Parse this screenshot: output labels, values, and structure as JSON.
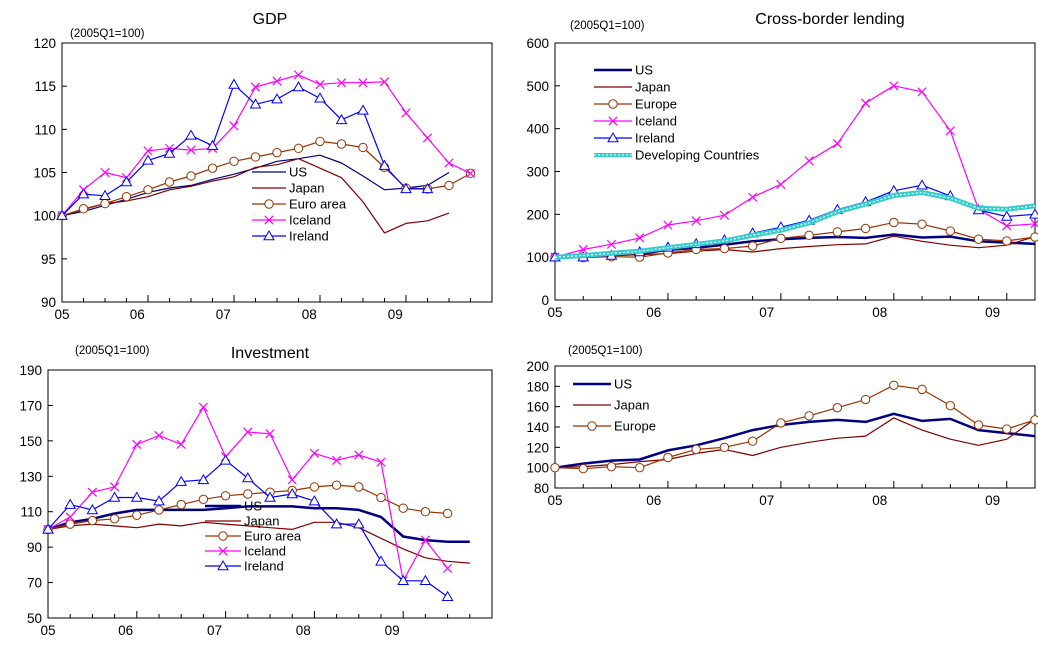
{
  "chart_data": [
    {
      "type": "line",
      "title": "GDP",
      "note": "(2005Q1=100)",
      "xlabel": "",
      "ylabel": "",
      "x_ticks": [
        "05",
        "06",
        "07",
        "08",
        "09"
      ],
      "xlim": [
        0,
        20
      ],
      "ylim": [
        90,
        120
      ],
      "yticks": [
        90,
        95,
        100,
        105,
        110,
        115,
        120
      ],
      "grid": false,
      "legend_position": "center",
      "series": [
        {
          "name": "US",
          "color": "#000080",
          "marker": "none",
          "values": [
            100,
            100.5,
            101.2,
            101.9,
            102.7,
            103.2,
            103.5,
            104.2,
            104.8,
            105.5,
            106.3,
            106.6,
            107.0,
            106.1,
            104.6,
            103.0,
            103.2,
            103.5,
            105.0
          ]
        },
        {
          "name": "Japan",
          "color": "#800000",
          "marker": "none",
          "values": [
            100,
            100.7,
            101.4,
            101.7,
            102.2,
            103.0,
            103.4,
            104.0,
            104.5,
            105.6,
            105.9,
            106.6,
            105.5,
            104.4,
            101.6,
            98.0,
            99.1,
            99.4,
            100.3
          ]
        },
        {
          "name": "Euro area",
          "color": "#993300",
          "marker": "circle",
          "values": [
            100,
            100.8,
            101.4,
            102.2,
            103.0,
            103.9,
            104.6,
            105.5,
            106.3,
            106.8,
            107.3,
            107.8,
            108.6,
            108.3,
            107.9,
            105.6,
            103.2,
            103.1,
            103.5,
            104.9
          ]
        },
        {
          "name": "Iceland",
          "color": "#ff00ff",
          "marker": "x",
          "values": [
            100,
            103.0,
            105.0,
            104.4,
            107.5,
            107.8,
            107.6,
            107.8,
            110.4,
            114.9,
            115.6,
            116.3,
            115.2,
            115.4,
            115.4,
            115.5,
            111.9,
            109.0,
            106.1,
            104.9
          ]
        },
        {
          "name": "Ireland",
          "color": "#0000ff",
          "marker": "triangle",
          "values": [
            100,
            102.5,
            102.3,
            103.9,
            106.4,
            107.2,
            109.3,
            108.1,
            115.2,
            112.9,
            113.5,
            114.9,
            113.6,
            111.1,
            112.2,
            105.8,
            103.1,
            103.1
          ]
        }
      ]
    },
    {
      "type": "line",
      "title": "Cross-border lending",
      "note": "(2005Q1=100)",
      "xlabel": "",
      "ylabel": "",
      "x_ticks": [
        "05",
        "06",
        "07",
        "08",
        "09"
      ],
      "xlim": [
        0,
        17
      ],
      "ylim": [
        0,
        600
      ],
      "yticks": [
        0,
        100,
        200,
        300,
        400,
        500,
        600
      ],
      "grid": false,
      "legend_position": "top-left",
      "series": [
        {
          "name": "US",
          "color": "#000080",
          "marker": "none",
          "width": 2.5,
          "values": [
            100,
            104,
            107,
            108,
            117,
            122,
            129,
            137,
            142,
            145,
            147,
            145,
            153,
            146,
            148,
            137,
            134,
            131
          ]
        },
        {
          "name": "Japan",
          "color": "#800000",
          "marker": "none",
          "values": [
            100,
            101,
            103,
            106,
            108,
            114,
            118,
            112,
            120,
            125,
            129,
            131,
            149,
            137,
            128,
            122,
            128,
            148
          ]
        },
        {
          "name": "Europe",
          "color": "#993300",
          "marker": "circle",
          "values": [
            100,
            99,
            101,
            100,
            110,
            118,
            120,
            126,
            144,
            151,
            159,
            167,
            181,
            177,
            161,
            142,
            138,
            147
          ]
        },
        {
          "name": "Iceland",
          "color": "#ff00ff",
          "marker": "x",
          "values": [
            100,
            118,
            130,
            145,
            175,
            185,
            198,
            240,
            270,
            325,
            365,
            460,
            500,
            486,
            395,
            212,
            173,
            178
          ]
        },
        {
          "name": "Ireland",
          "color": "#0000ff",
          "marker": "triangle",
          "values": [
            100,
            100,
            104,
            112,
            123,
            131,
            140,
            156,
            170,
            186,
            211,
            229,
            255,
            268,
            243,
            210,
            195,
            200
          ]
        },
        {
          "name": "Developing Countries",
          "color": "#33cccc",
          "marker": "none",
          "width": 5,
          "dashed": true,
          "values": [
            100,
            104,
            109,
            114,
            122,
            130,
            138,
            151,
            163,
            180,
            206,
            224,
            244,
            251,
            238,
            214,
            212,
            220
          ]
        }
      ]
    },
    {
      "type": "line",
      "title": "Investment",
      "note": "(2005Q1=100)",
      "xlabel": "",
      "ylabel": "",
      "x_ticks": [
        "05",
        "06",
        "07",
        "08",
        "09"
      ],
      "xlim": [
        0,
        20
      ],
      "ylim": [
        50,
        190
      ],
      "yticks": [
        50,
        70,
        90,
        110,
        130,
        150,
        170,
        190
      ],
      "grid": false,
      "legend_position": "bottom-center",
      "series": [
        {
          "name": "US",
          "color": "#000080",
          "marker": "none",
          "width": 2.5,
          "values": [
            100,
            104,
            106,
            109,
            111,
            111,
            111,
            111,
            112,
            113,
            113,
            113,
            112,
            112,
            111,
            107,
            96,
            94,
            93,
            93
          ]
        },
        {
          "name": "Japan",
          "color": "#800000",
          "marker": "none",
          "values": [
            100,
            102,
            103,
            102,
            101,
            103,
            102,
            104,
            103,
            102,
            101,
            100,
            104,
            104,
            101,
            95,
            89,
            84,
            82,
            81
          ]
        },
        {
          "name": "Euro area",
          "color": "#993300",
          "marker": "circle",
          "values": [
            100,
            103,
            105,
            106,
            108,
            111,
            114,
            117,
            119,
            120,
            121,
            122,
            124,
            125,
            124,
            118,
            112,
            110,
            109
          ]
        },
        {
          "name": "Iceland",
          "color": "#ff00ff",
          "marker": "x",
          "values": [
            100,
            107,
            121,
            124,
            148,
            153,
            148,
            169,
            141,
            155,
            154,
            128,
            143,
            139,
            142,
            138,
            71,
            94,
            78
          ]
        },
        {
          "name": "Ireland",
          "color": "#0000ff",
          "marker": "triangle",
          "values": [
            100,
            114,
            111,
            118,
            118,
            116,
            127,
            128,
            139,
            129,
            118,
            120,
            116,
            103,
            103,
            82,
            71,
            71,
            62
          ]
        }
      ]
    },
    {
      "type": "line",
      "title": "",
      "note": "(2005Q1=100)",
      "xlabel": "",
      "ylabel": "",
      "x_ticks": [
        "05",
        "06",
        "07",
        "08",
        "09"
      ],
      "xlim": [
        0,
        17
      ],
      "ylim": [
        80,
        200
      ],
      "yticks": [
        80,
        100,
        120,
        140,
        160,
        180,
        200
      ],
      "grid": false,
      "legend_position": "top-left",
      "series": [
        {
          "name": "US",
          "color": "#000080",
          "marker": "none",
          "width": 2.5,
          "values": [
            100,
            104,
            107,
            108,
            117,
            122,
            129,
            137,
            142,
            145,
            147,
            145,
            153,
            146,
            148,
            137,
            134,
            131
          ]
        },
        {
          "name": "Japan",
          "color": "#800000",
          "marker": "none",
          "values": [
            100,
            101,
            103,
            106,
            108,
            114,
            118,
            112,
            120,
            125,
            129,
            131,
            149,
            137,
            128,
            122,
            128,
            148
          ]
        },
        {
          "name": "Europe",
          "color": "#993300",
          "marker": "circle",
          "values": [
            100,
            99,
            101,
            100,
            110,
            118,
            120,
            126,
            144,
            151,
            159,
            167,
            181,
            177,
            161,
            142,
            138,
            147
          ]
        }
      ]
    }
  ]
}
